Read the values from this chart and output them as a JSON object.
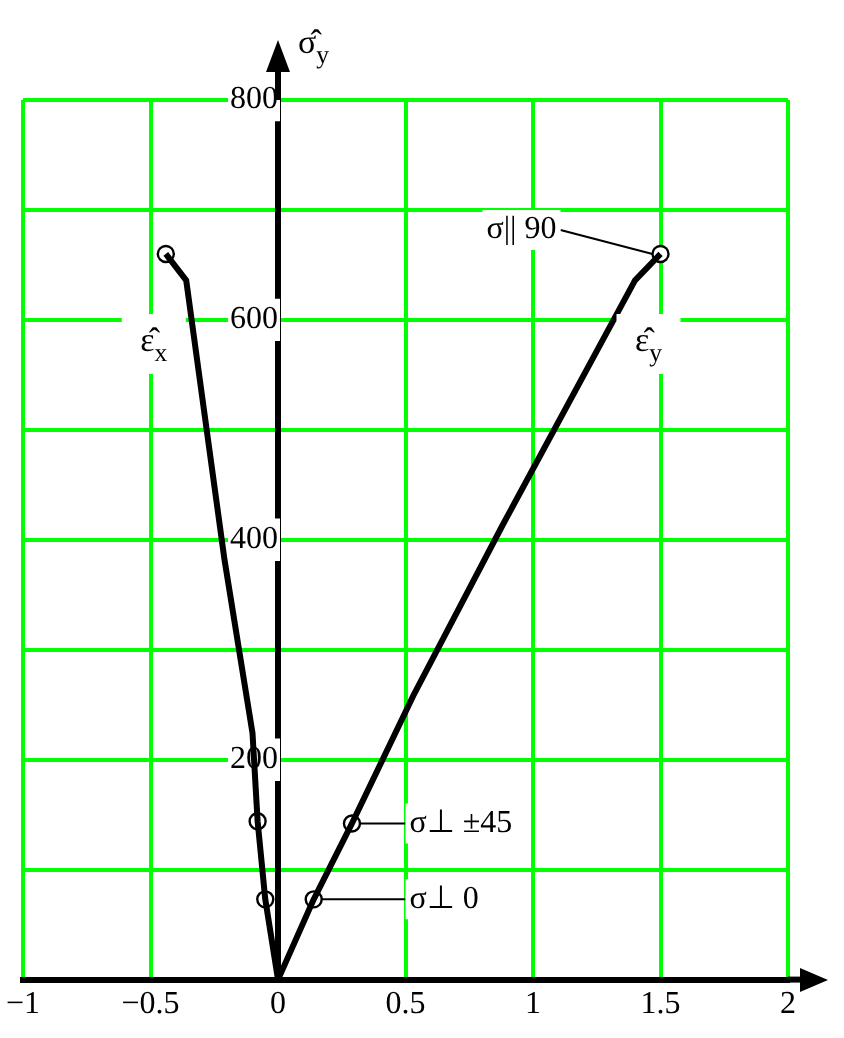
{
  "chart_data": {
    "type": "line",
    "ylabel": "σ̂$_{y}$",
    "xlim": [
      -1,
      2
    ],
    "ylim": [
      0,
      800
    ],
    "xticks": [
      -1,
      -0.5,
      0,
      0.5,
      1,
      1.5,
      2
    ],
    "yticks": [
      {
        "value": 0,
        "label": null
      },
      {
        "value": 100,
        "label": null
      },
      200,
      {
        "value": 300,
        "label": null
      },
      400,
      {
        "value": 500,
        "label": null
      },
      600,
      {
        "value": 700,
        "label": null
      },
      800
    ],
    "grid": true,
    "legend": false,
    "series": [
      {
        "name": "ε̂$_{x}$",
        "type": "line",
        "color": "#000000",
        "marker": "none",
        "x": [
          0,
          -0.05,
          -0.08,
          -0.1,
          -0.21,
          -0.36,
          -0.44
        ],
        "values": [
          0,
          73,
          144,
          224,
          382,
          636,
          660
        ]
      },
      {
        "name": "ε̂$_{y}$",
        "type": "line",
        "color": "#000000",
        "marker": "none",
        "x": [
          0,
          0.14,
          0.29,
          0.53,
          0.88,
          1.4,
          1.5
        ],
        "values": [
          0,
          73,
          142,
          258,
          413,
          636,
          660
        ]
      },
      {
        "type": "scatter",
        "color": "#000000",
        "marker": "circle",
        "x": [
          -0.05,
          -0.08,
          -0.44,
          0.14,
          0.29,
          1.5
        ],
        "values": [
          73,
          144,
          660,
          73,
          142,
          660
        ]
      }
    ],
    "annotations": [
      {
        "text": "σ⊥ 0",
        "x": 0.14,
        "y": 73
      },
      {
        "text": "σ⊥ ±45",
        "x": 0.29,
        "y": 142
      },
      {
        "text": "σ|| 90",
        "x": 1.5,
        "y": 660
      }
    ]
  }
}
